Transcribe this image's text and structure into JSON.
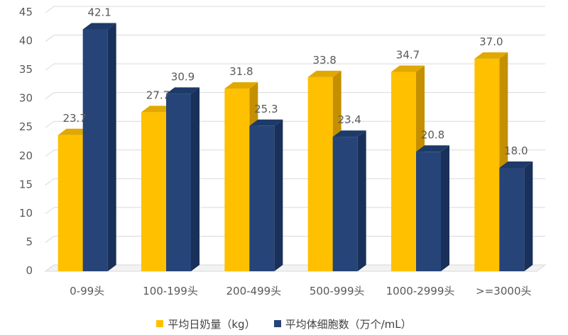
{
  "chart_data": {
    "type": "bar",
    "variant": "3d-clustered",
    "categories": [
      "0-99头",
      "100-199头",
      "200-499头",
      "500-999头",
      "1000-2999头",
      ">=3000头"
    ],
    "series": [
      {
        "name": "平均日奶量（kg）",
        "values": [
          23.7,
          27.7,
          31.8,
          33.8,
          34.7,
          37.0
        ],
        "labels": [
          "23.7",
          "27.7",
          "31.8",
          "33.8",
          "34.7",
          "37.0"
        ]
      },
      {
        "name": "平均体细胞数（万个/mL）",
        "values": [
          42.1,
          30.9,
          25.3,
          23.4,
          20.8,
          18.0
        ],
        "labels": [
          "42.1",
          "30.9",
          "25.3",
          "23.4",
          "20.8",
          "18.0"
        ]
      }
    ],
    "yticks": [
      "0",
      "5",
      "10",
      "15",
      "20",
      "25",
      "30",
      "35",
      "40",
      "45"
    ],
    "ylim": [
      0,
      45
    ],
    "grid": true,
    "legend_position": "bottom",
    "colors": {
      "series_1": "#FFC000",
      "series_1_side": "#C49000",
      "series_1_top": "#E0A800",
      "series_2": "#264478",
      "series_2_side": "#18305A",
      "series_2_top": "#1D3A68",
      "grid": "#D9D9D9",
      "text": "#595959"
    }
  }
}
